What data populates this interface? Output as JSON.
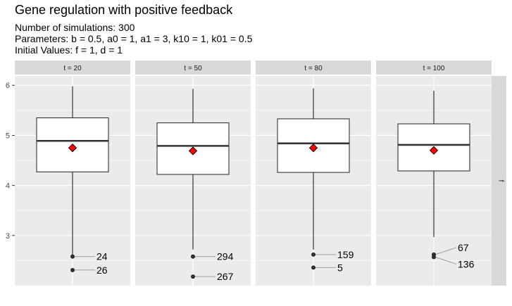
{
  "chart": {
    "title": "Gene regulation with positive feedback",
    "subtitle_lines": [
      "Number of simulations: 300",
      "Parameters: b = 0.5, a0 = 1, a1 = 3, k10 = 1, k01 = 0.5",
      "Initial Values: f = 1, d = 1"
    ]
  },
  "chart_data": {
    "type": "boxplot",
    "facet_row_label": "f",
    "ylim": [
      2.0,
      6.2
    ],
    "y_ticks": [
      3,
      4,
      5,
      6
    ],
    "grid": true,
    "colors": {
      "panel_bg": "#ebebeb",
      "grid": "#ffffff",
      "strip_bg": "#d9d9d9",
      "box_fill": "#ffffff",
      "mean_marker": "#ff0000"
    },
    "panels": [
      {
        "label": "t = 20",
        "whisker_low": 2.58,
        "q1": 4.27,
        "median": 4.89,
        "q3": 5.35,
        "whisker_high": 5.98,
        "mean": 4.75,
        "outliers": [
          {
            "value": 2.58,
            "id": "24"
          },
          {
            "value": 2.31,
            "id": "26"
          }
        ]
      },
      {
        "label": "t = 50",
        "whisker_low": 2.72,
        "q1": 4.22,
        "median": 4.79,
        "q3": 5.25,
        "whisker_high": 5.93,
        "mean": 4.69,
        "outliers": [
          {
            "value": 2.58,
            "id": "294"
          },
          {
            "value": 2.18,
            "id": "267"
          }
        ]
      },
      {
        "label": "t = 80",
        "whisker_low": 2.72,
        "q1": 4.26,
        "median": 4.84,
        "q3": 5.33,
        "whisker_high": 5.94,
        "mean": 4.75,
        "outliers": [
          {
            "value": 2.62,
            "id": "159"
          },
          {
            "value": 2.36,
            "id": "5"
          }
        ]
      },
      {
        "label": "t = 100",
        "whisker_low": 2.97,
        "q1": 4.29,
        "median": 4.81,
        "q3": 5.23,
        "whisker_high": 5.89,
        "mean": 4.7,
        "outliers": [
          {
            "value": 2.62,
            "id": "67"
          },
          {
            "value": 2.57,
            "id": "136"
          }
        ]
      }
    ]
  }
}
